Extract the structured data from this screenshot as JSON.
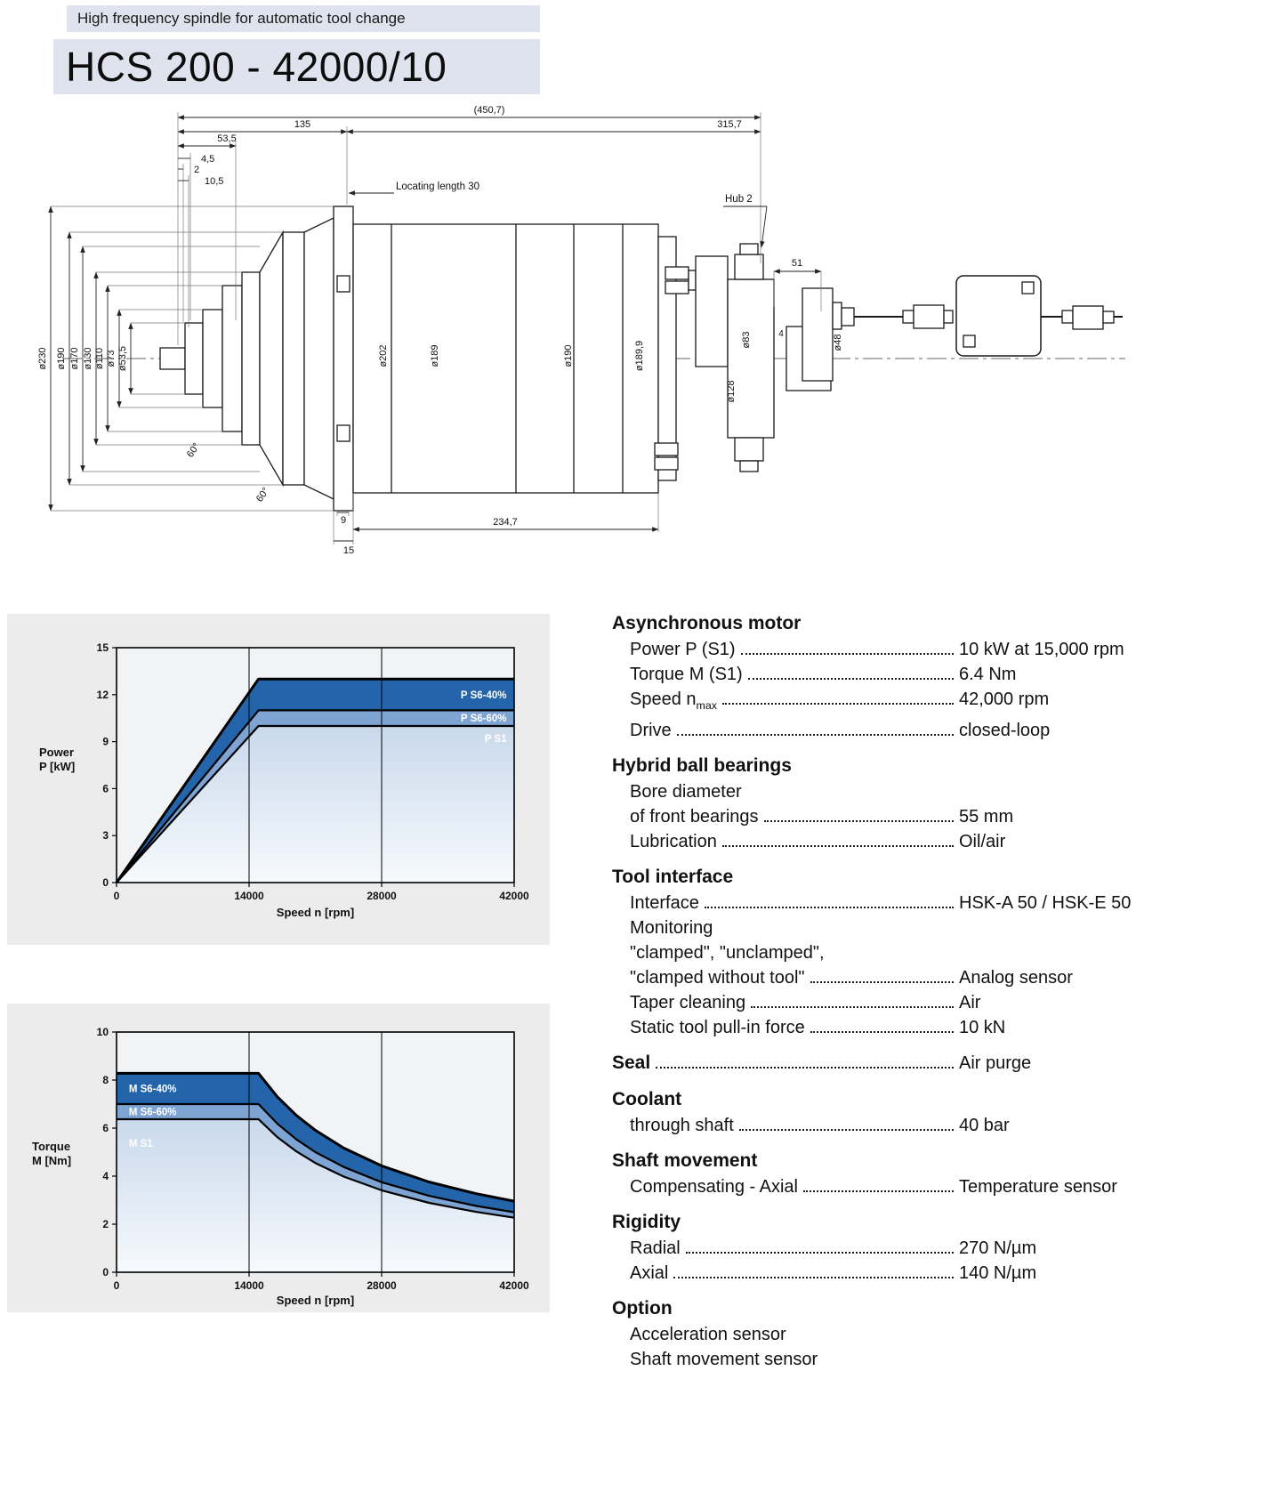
{
  "header": {
    "subtitle": "High frequency spindle for automatic tool change",
    "title": "HCS 200 - 42000/10"
  },
  "drawing": {
    "dims": {
      "total": "(450,7)",
      "front": "135",
      "rear": "315,7",
      "l535": "53,5",
      "l45": "4,5",
      "l2": "2",
      "l105": "10,5",
      "locating": "Locating length 30",
      "hub": "Hub 2",
      "l51": "51",
      "d230": "ø230",
      "d190": "ø190",
      "d170": "ø170",
      "d130": "ø130",
      "d110": "ø110",
      "d73": "ø73",
      "d535": "ø53,5",
      "d202": "ø202",
      "d189": "ø189",
      "d190b": "ø190",
      "d1899": "ø189,9",
      "d83": "ø83",
      "d128": "ø128",
      "d48": "ø48",
      "n4": "4",
      "a60": "60°",
      "a60b": "60°",
      "n9": "9",
      "l2347": "234,7",
      "n15": "15"
    }
  },
  "chart_data": [
    {
      "type": "line",
      "title": "",
      "xlabel": "Speed n [rpm]",
      "ylabel": "Power P [kW]",
      "ylabel_lines": [
        "Power",
        "P [kW]"
      ],
      "xlim": [
        0,
        42000
      ],
      "ylim": [
        0,
        15
      ],
      "xticks": [
        0,
        14000,
        28000,
        42000
      ],
      "yticks": [
        0,
        3,
        6,
        9,
        12,
        15
      ],
      "grid": "vertical",
      "legend": "inline-labels",
      "colors": {
        "band1": "#2364ab",
        "band2": "#7ea4d4",
        "area_top": "#c9d9ec",
        "area_bottom": "#f7fafd",
        "label_text": "#ffffff"
      },
      "series": [
        {
          "name": "P S6-40%",
          "x": [
            0,
            15000,
            42000
          ],
          "y": [
            0,
            13,
            13
          ]
        },
        {
          "name": "P S6-60%",
          "x": [
            0,
            15000,
            42000
          ],
          "y": [
            0,
            11,
            11
          ]
        },
        {
          "name": "P S1",
          "x": [
            0,
            15000,
            42000
          ],
          "y": [
            0,
            10,
            10
          ]
        }
      ]
    },
    {
      "type": "line",
      "title": "",
      "xlabel": "Speed n [rpm]",
      "ylabel": "Torque M [Nm]",
      "ylabel_lines": [
        "Torque",
        "M [Nm]"
      ],
      "xlim": [
        0,
        42000
      ],
      "ylim": [
        0,
        10
      ],
      "xticks": [
        0,
        14000,
        28000,
        42000
      ],
      "yticks": [
        0,
        2,
        4,
        6,
        8,
        10
      ],
      "grid": "vertical",
      "legend": "inline-labels",
      "colors": {
        "band1": "#2364ab",
        "band2": "#7ea4d4",
        "area_top": "#c9d9ec",
        "area_bottom": "#f7fafd",
        "label_text": "#ffffff"
      },
      "series": [
        {
          "name": "M S6-40%",
          "x": [
            0,
            15000,
            17000,
            19000,
            21000,
            24000,
            28000,
            33000,
            38000,
            42000
          ],
          "y": [
            8.28,
            8.28,
            7.3,
            6.53,
            5.91,
            5.17,
            4.43,
            3.76,
            3.27,
            2.96
          ]
        },
        {
          "name": "M S6-60%",
          "x": [
            0,
            15000,
            17000,
            19000,
            21000,
            24000,
            28000,
            33000,
            38000,
            42000
          ],
          "y": [
            7.0,
            7.0,
            6.18,
            5.53,
            5.0,
            4.38,
            3.75,
            3.18,
            2.76,
            2.5
          ]
        },
        {
          "name": "M S1",
          "x": [
            0,
            15000,
            17000,
            19000,
            21000,
            24000,
            28000,
            33000,
            38000,
            42000
          ],
          "y": [
            6.37,
            6.37,
            5.62,
            5.03,
            4.55,
            3.98,
            3.41,
            2.89,
            2.51,
            2.27
          ]
        }
      ]
    }
  ],
  "specs": {
    "sections": [
      {
        "title": "Asynchronous motor",
        "rows": [
          {
            "label": "Power P (S1)",
            "value": "10 kW at 15,000 rpm"
          },
          {
            "label": "Torque M (S1)",
            "value": "6.4 Nm"
          },
          {
            "label": "Speed n",
            "sub": "max",
            "value": "42,000 rpm"
          },
          {
            "label": "Drive",
            "value": "closed-loop"
          }
        ]
      },
      {
        "title": "Hybrid ball bearings",
        "rows": [
          {
            "label": "Bore diameter"
          },
          {
            "label": "of front bearings",
            "value": "55 mm"
          },
          {
            "label": "Lubrication",
            "value": "Oil/air"
          }
        ]
      },
      {
        "title": "Tool interface",
        "rows": [
          {
            "label": "Interface",
            "value": "HSK-A 50 / HSK-E 50"
          },
          {
            "label": "Monitoring"
          },
          {
            "label": "\"clamped\", \"unclamped\","
          },
          {
            "label": "\"clamped without tool\"",
            "value": "Analog sensor"
          },
          {
            "label": "Taper cleaning",
            "value": "Air"
          },
          {
            "label": "Static tool pull-in force",
            "value": "10 kN"
          }
        ]
      },
      {
        "title": "Seal",
        "value": "Air purge",
        "rows": []
      },
      {
        "title": "Coolant",
        "rows": [
          {
            "label": "through shaft",
            "value": "40 bar"
          }
        ]
      },
      {
        "title": "Shaft movement",
        "rows": [
          {
            "label": "Compensating - Axial",
            "value": "Temperature sensor"
          }
        ]
      },
      {
        "title": "Rigidity",
        "rows": [
          {
            "label": "Radial",
            "value": "270 N/µm"
          },
          {
            "label": "Axial",
            "value": "140 N/µm"
          }
        ]
      },
      {
        "title": "Option",
        "rows": [
          {
            "label": "Acceleration sensor"
          },
          {
            "label": "Shaft movement sensor"
          }
        ]
      }
    ]
  }
}
